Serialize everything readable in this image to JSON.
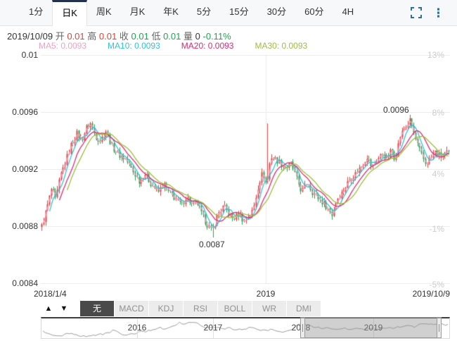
{
  "colors": {
    "up": "#e2413a",
    "down": "#21a452",
    "ma5": "#f2a0c2",
    "ma10": "#35bfd6",
    "ma20": "#dc2a72",
    "ma30": "#9cbe3c",
    "icon": "#2e6d9e",
    "active_tab_border": "#24304f"
  },
  "toolbar": {
    "tabs": [
      "1分",
      "日K",
      "周K",
      "月K",
      "年K",
      "5分",
      "15分",
      "30分",
      "60分",
      "4H"
    ],
    "active_tab": "日K"
  },
  "quote": {
    "date": "2019/10/09",
    "open_label": "开",
    "open": "0.01",
    "high_label": "高",
    "high": "0.01",
    "close_label": "收",
    "close": "0.01",
    "low_label": "低",
    "low": "0.01",
    "vol_label": "量",
    "vol": "0",
    "change": "-0.11%"
  },
  "ma_legend": {
    "ma5": "MA5: 0.0093",
    "ma10": "MA10: 0.0093",
    "ma20": "MA20: 0.0093",
    "ma30": "MA30: 0.0093"
  },
  "axis": {
    "left": [
      "0.01",
      "0.0096",
      "0.0092",
      "0.0088",
      "0.0084"
    ],
    "right": [
      "13%",
      "8%",
      "4%",
      "-1%",
      "-5%"
    ],
    "bottom": [
      "2018/1/4",
      "2019",
      "2019/10/9"
    ]
  },
  "annotations": {
    "low": "0.0087",
    "high": "0.0096"
  },
  "indicator_bar": {
    "up_arrow": "▲",
    "down_arrow": "▼",
    "tabs": [
      "无",
      "MACD",
      "KDJ",
      "RSI",
      "BOLL",
      "WR",
      "DMI"
    ],
    "active_tab": "无"
  },
  "navigator": {
    "years": [
      "2016",
      "2017",
      "2018",
      "2019"
    ]
  },
  "chart_data": {
    "type": "candlestick",
    "title": "",
    "x_range": [
      "2018/1/4",
      "2019/10/9"
    ],
    "y_ticks_price": [
      0.01,
      0.0096,
      0.0092,
      0.0088,
      0.0084
    ],
    "y_ticks_percent": [
      "13%",
      "8%",
      "4%",
      "-1%",
      "-5%"
    ],
    "x_ticks": [
      "2018/1/4",
      "2019",
      "2019/10/9"
    ],
    "moving_averages": {
      "MA5": 0.0093,
      "MA10": 0.0093,
      "MA20": 0.0093,
      "MA30": 0.0093
    },
    "marked_low": 0.0087,
    "marked_high": 0.0096,
    "last_quote": {
      "date": "2019/10/09",
      "open": 0.01,
      "high": 0.01,
      "close": 0.01,
      "low": 0.01,
      "volume": 0,
      "change_pct": -0.11
    },
    "trend": [
      [
        0,
        0.0088
      ],
      [
        0.012,
        0.00892
      ],
      [
        0.024,
        0.00906
      ],
      [
        0.034,
        0.00898
      ],
      [
        0.046,
        0.00915
      ],
      [
        0.058,
        0.00925
      ],
      [
        0.072,
        0.00937
      ],
      [
        0.086,
        0.00945
      ],
      [
        0.098,
        0.0094
      ],
      [
        0.11,
        0.00949
      ],
      [
        0.12,
        0.00952
      ],
      [
        0.132,
        0.00943
      ],
      [
        0.144,
        0.0094
      ],
      [
        0.158,
        0.00947
      ],
      [
        0.172,
        0.00936
      ],
      [
        0.189,
        0.0093
      ],
      [
        0.206,
        0.00927
      ],
      [
        0.223,
        0.00919
      ],
      [
        0.241,
        0.00911
      ],
      [
        0.253,
        0.00917
      ],
      [
        0.27,
        0.00909
      ],
      [
        0.287,
        0.00904
      ],
      [
        0.299,
        0.0091
      ],
      [
        0.313,
        0.00903
      ],
      [
        0.33,
        0.00899
      ],
      [
        0.344,
        0.00895
      ],
      [
        0.356,
        0.00901
      ],
      [
        0.368,
        0.00895
      ],
      [
        0.381,
        0.00897
      ],
      [
        0.395,
        0.00887
      ],
      [
        0.407,
        0.00881
      ],
      [
        0.419,
        0.00876
      ],
      [
        0.433,
        0.00889
      ],
      [
        0.447,
        0.00894
      ],
      [
        0.459,
        0.00889
      ],
      [
        0.471,
        0.00885
      ],
      [
        0.485,
        0.00889
      ],
      [
        0.497,
        0.00883
      ],
      [
        0.507,
        0.00887
      ],
      [
        0.519,
        0.00891
      ],
      [
        0.533,
        0.0091
      ],
      [
        0.543,
        0.00918
      ],
      [
        0.553,
        0.00908
      ],
      [
        0.562,
        0.00929
      ],
      [
        0.574,
        0.00927
      ],
      [
        0.588,
        0.00924
      ],
      [
        0.601,
        0.00921
      ],
      [
        0.613,
        0.00924
      ],
      [
        0.625,
        0.00914
      ],
      [
        0.639,
        0.00904
      ],
      [
        0.653,
        0.00911
      ],
      [
        0.665,
        0.00904
      ],
      [
        0.682,
        0.00899
      ],
      [
        0.699,
        0.00894
      ],
      [
        0.713,
        0.00888
      ],
      [
        0.725,
        0.00899
      ],
      [
        0.739,
        0.00904
      ],
      [
        0.754,
        0.00912
      ],
      [
        0.771,
        0.00917
      ],
      [
        0.785,
        0.00922
      ],
      [
        0.799,
        0.00929
      ],
      [
        0.811,
        0.00921
      ],
      [
        0.825,
        0.00927
      ],
      [
        0.837,
        0.00931
      ],
      [
        0.849,
        0.00927
      ],
      [
        0.859,
        0.00934
      ],
      [
        0.868,
        0.00927
      ],
      [
        0.88,
        0.00943
      ],
      [
        0.892,
        0.00949
      ],
      [
        0.905,
        0.00954
      ],
      [
        0.917,
        0.00942
      ],
      [
        0.931,
        0.00931
      ],
      [
        0.943,
        0.00924
      ],
      [
        0.954,
        0.00927
      ],
      [
        0.966,
        0.00932
      ],
      [
        0.979,
        0.00929
      ],
      [
        0.993,
        0.00931
      ]
    ],
    "specials": [
      {
        "f": 0.419,
        "low": 0.00872
      },
      {
        "f": 0.553,
        "high": 0.00952
      },
      {
        "f": 0.905,
        "high": 0.00958
      }
    ],
    "navigator_series": [
      [
        0.003,
        18
      ],
      [
        0.021,
        22
      ],
      [
        0.038,
        24
      ],
      [
        0.064,
        20
      ],
      [
        0.089,
        23
      ],
      [
        0.115,
        24
      ],
      [
        0.141,
        22
      ],
      [
        0.167,
        18
      ],
      [
        0.18,
        14
      ],
      [
        0.192,
        22
      ],
      [
        0.218,
        21
      ],
      [
        0.244,
        18
      ],
      [
        0.27,
        16
      ],
      [
        0.287,
        12
      ],
      [
        0.304,
        14
      ],
      [
        0.321,
        9
      ],
      [
        0.338,
        5
      ],
      [
        0.351,
        7
      ],
      [
        0.364,
        3
      ],
      [
        0.378,
        5
      ],
      [
        0.39,
        10
      ],
      [
        0.407,
        13
      ],
      [
        0.424,
        11
      ],
      [
        0.442,
        14
      ],
      [
        0.459,
        12
      ],
      [
        0.476,
        16
      ],
      [
        0.493,
        14
      ],
      [
        0.51,
        12
      ],
      [
        0.528,
        14
      ],
      [
        0.545,
        16
      ],
      [
        0.562,
        15
      ],
      [
        0.579,
        17
      ],
      [
        0.596,
        18
      ],
      [
        0.613,
        16
      ],
      [
        0.631,
        8
      ],
      [
        0.643,
        6
      ],
      [
        0.656,
        9
      ],
      [
        0.674,
        11
      ],
      [
        0.691,
        13
      ],
      [
        0.708,
        12
      ],
      [
        0.725,
        14
      ],
      [
        0.742,
        13
      ],
      [
        0.76,
        14
      ],
      [
        0.777,
        12
      ],
      [
        0.794,
        14
      ],
      [
        0.811,
        13
      ],
      [
        0.828,
        14
      ],
      [
        0.845,
        12
      ],
      [
        0.863,
        13
      ],
      [
        0.88,
        11
      ],
      [
        0.897,
        9
      ],
      [
        0.914,
        11
      ],
      [
        0.931,
        8
      ],
      [
        0.948,
        6
      ],
      [
        0.966,
        9
      ],
      [
        0.979,
        6
      ],
      [
        0.993,
        8
      ]
    ],
    "navigator_selection_frac": [
      0.634,
      0.98
    ]
  }
}
